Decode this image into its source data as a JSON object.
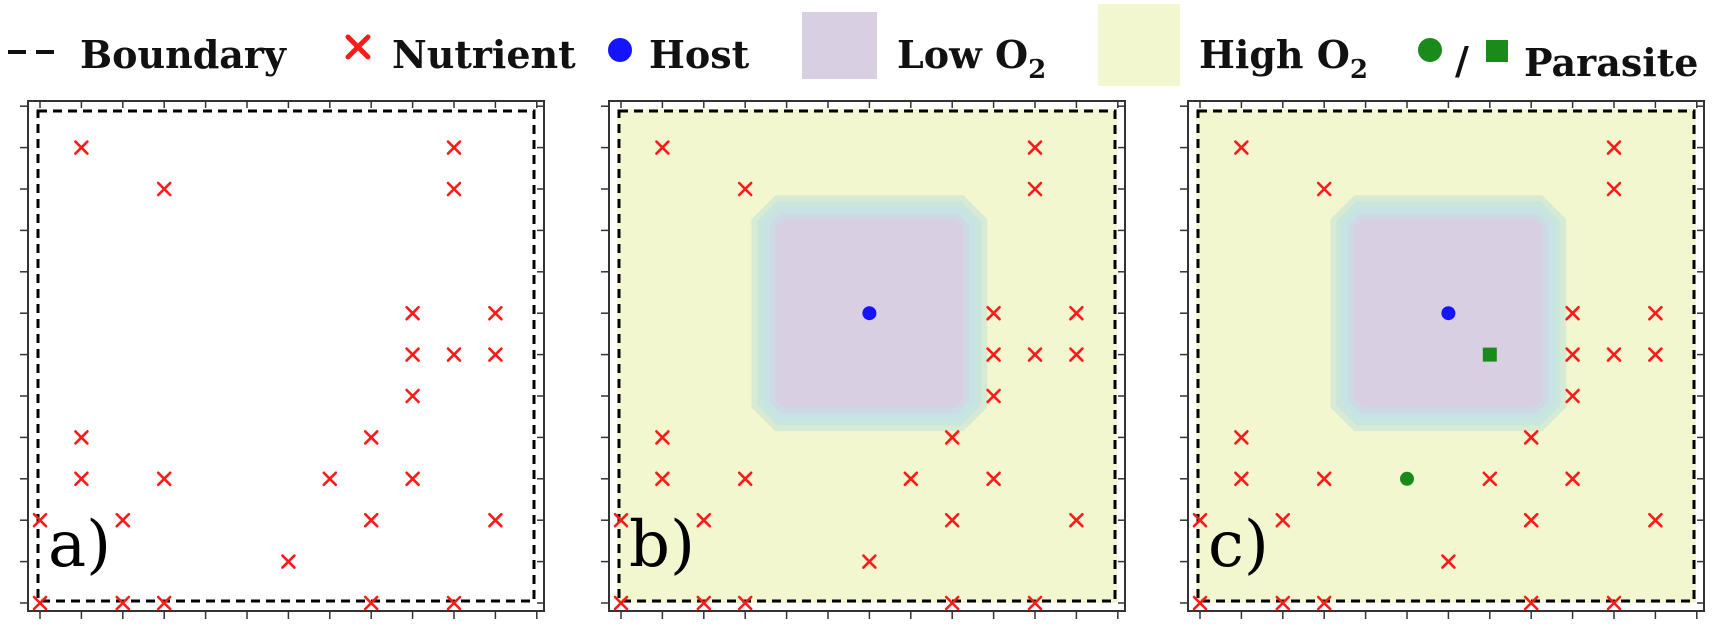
{
  "legend": {
    "boundary": "Boundary",
    "nutrient": "Nutrient",
    "host": "Host",
    "low_o2": "Low O",
    "low_o2_sub": "2",
    "high_o2": "High O",
    "high_o2_sub": "2",
    "parasite_sep": "/",
    "parasite": "Parasite"
  },
  "colors": {
    "nutrient": "#ff1a1a",
    "host": "#1414ff",
    "parasite": "#1a8a1a",
    "low_o2": "#d8d0e2",
    "high_o2": "#f3f7cf",
    "gradient_edge": "#bfe6dc",
    "boundary": "#000000"
  },
  "grid": {
    "cols": 13,
    "rows": 13
  },
  "panels": [
    {
      "label": "a)",
      "oxygen_field": false,
      "host": null,
      "parasites": [],
      "nutrients": [
        [
          1,
          11
        ],
        [
          3,
          10
        ],
        [
          10,
          11
        ],
        [
          10,
          10
        ],
        [
          9,
          7
        ],
        [
          11,
          7
        ],
        [
          9,
          6
        ],
        [
          10,
          6
        ],
        [
          11,
          6
        ],
        [
          9,
          5
        ],
        [
          1,
          4
        ],
        [
          8,
          4
        ],
        [
          1,
          3
        ],
        [
          3,
          3
        ],
        [
          7,
          3
        ],
        [
          9,
          3
        ],
        [
          0,
          2
        ],
        [
          2,
          2
        ],
        [
          8,
          2
        ],
        [
          11,
          2
        ],
        [
          6,
          1
        ],
        [
          0,
          0
        ],
        [
          2,
          0
        ],
        [
          3,
          0
        ],
        [
          8,
          0
        ],
        [
          10,
          0
        ]
      ]
    },
    {
      "label": "b)",
      "oxygen_field": true,
      "host": [
        6,
        7
      ],
      "parasites": [],
      "nutrients": [
        [
          1,
          11
        ],
        [
          3,
          10
        ],
        [
          10,
          11
        ],
        [
          10,
          10
        ],
        [
          9,
          7
        ],
        [
          11,
          7
        ],
        [
          9,
          6
        ],
        [
          10,
          6
        ],
        [
          11,
          6
        ],
        [
          9,
          5
        ],
        [
          1,
          4
        ],
        [
          8,
          4
        ],
        [
          1,
          3
        ],
        [
          3,
          3
        ],
        [
          7,
          3
        ],
        [
          9,
          3
        ],
        [
          0,
          2
        ],
        [
          2,
          2
        ],
        [
          8,
          2
        ],
        [
          11,
          2
        ],
        [
          6,
          1
        ],
        [
          0,
          0
        ],
        [
          2,
          0
        ],
        [
          3,
          0
        ],
        [
          8,
          0
        ],
        [
          10,
          0
        ]
      ]
    },
    {
      "label": "c)",
      "oxygen_field": true,
      "host": [
        6,
        7
      ],
      "parasites": [
        {
          "shape": "square",
          "pos": [
            7,
            6
          ]
        },
        {
          "shape": "circle",
          "pos": [
            5,
            3
          ]
        }
      ],
      "nutrients": [
        [
          1,
          11
        ],
        [
          3,
          10
        ],
        [
          10,
          11
        ],
        [
          10,
          10
        ],
        [
          9,
          7
        ],
        [
          11,
          7
        ],
        [
          9,
          6
        ],
        [
          10,
          6
        ],
        [
          11,
          6
        ],
        [
          9,
          5
        ],
        [
          1,
          4
        ],
        [
          8,
          4
        ],
        [
          1,
          3
        ],
        [
          3,
          3
        ],
        [
          7,
          3
        ],
        [
          9,
          3
        ],
        [
          0,
          2
        ],
        [
          2,
          2
        ],
        [
          8,
          2
        ],
        [
          11,
          2
        ],
        [
          6,
          1
        ],
        [
          0,
          0
        ],
        [
          2,
          0
        ],
        [
          3,
          0
        ],
        [
          8,
          0
        ],
        [
          10,
          0
        ]
      ]
    }
  ]
}
